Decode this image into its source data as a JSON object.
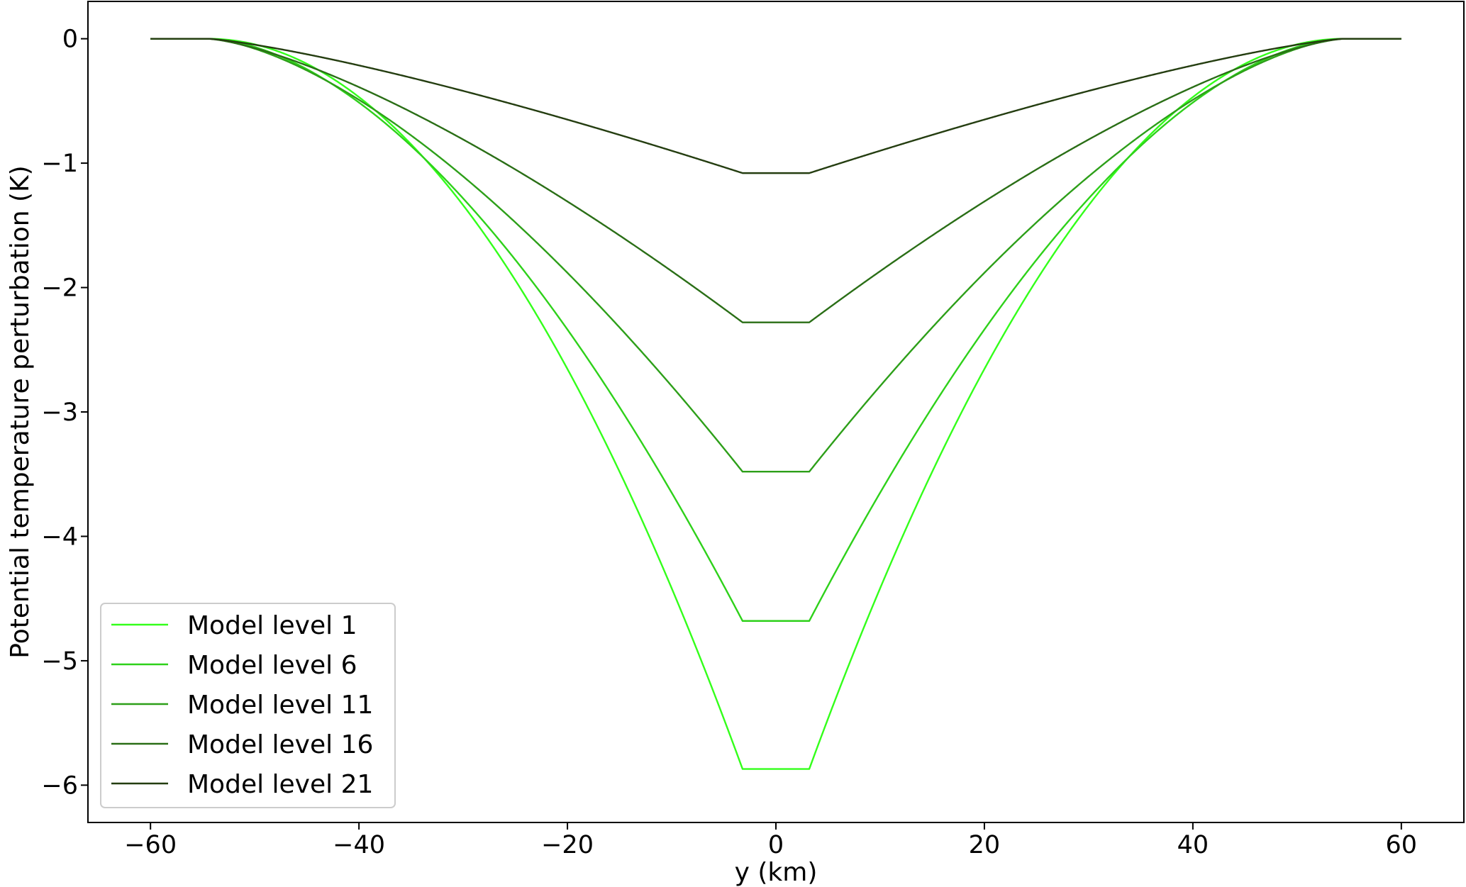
{
  "chart_data": {
    "type": "line",
    "xlabel": "y (km)",
    "ylabel": "Potential temperature perturbation (K)",
    "xlim": [
      -66,
      66
    ],
    "ylim": [
      -6.3,
      0.3
    ],
    "xticks": [
      -60,
      -40,
      -20,
      0,
      20,
      40,
      60
    ],
    "yticks": [
      0,
      -1,
      -2,
      -3,
      -4,
      -5,
      -6
    ],
    "xtick_labels": [
      "−60",
      "−40",
      "−20",
      "0",
      "20",
      "40",
      "60"
    ],
    "ytick_labels": [
      "0",
      "−1",
      "−2",
      "−3",
      "−4",
      "−5",
      "−6"
    ],
    "grid": false,
    "legend_position": "lower-left",
    "profile": {
      "outer_half_width_km": 54.5,
      "inner_half_width_km": 3.2,
      "domain_half_width_km": 60
    },
    "series": [
      {
        "name": "Model level 1",
        "min_value": -5.87,
        "shape_exponent": 2.0,
        "color": "#33ff1a"
      },
      {
        "name": "Model level 6",
        "min_value": -4.68,
        "shape_exponent": 1.75,
        "color": "#2ed11a"
      },
      {
        "name": "Model level 11",
        "min_value": -3.48,
        "shape_exponent": 1.55,
        "color": "#2d9f19"
      },
      {
        "name": "Model level 16",
        "min_value": -2.28,
        "shape_exponent": 1.4,
        "color": "#2a6e16"
      },
      {
        "name": "Model level 21",
        "min_value": -1.08,
        "shape_exponent": 1.28,
        "color": "#243d10"
      }
    ]
  }
}
